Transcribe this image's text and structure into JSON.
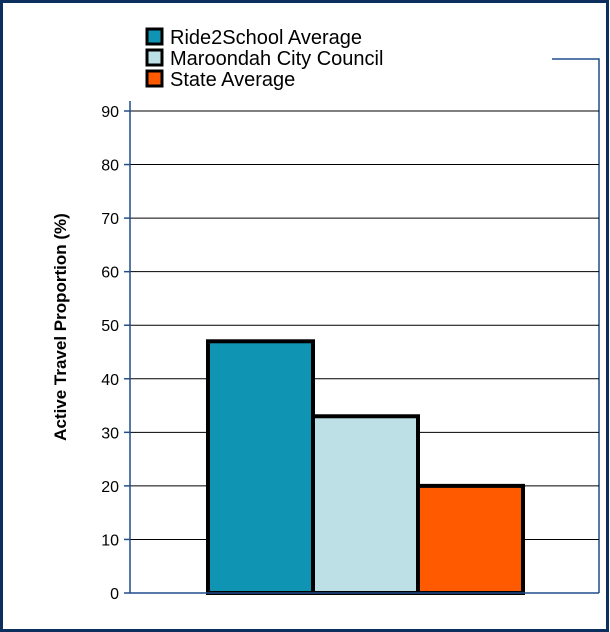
{
  "chart_data": {
    "type": "bar",
    "categories": [
      ""
    ],
    "series": [
      {
        "name": "Ride2School Average",
        "values": [
          47
        ],
        "color": "#0f94b4"
      },
      {
        "name": "Maroondah City Council",
        "values": [
          33
        ],
        "color": "#bde0e6"
      },
      {
        "name": "State Average",
        "values": [
          20
        ],
        "color": "#ff5a00"
      }
    ],
    "title": "",
    "xlabel": "",
    "ylabel": "Active Travel Proportion (%)",
    "ylim": [
      0,
      90
    ],
    "yticks": [
      "0",
      "10",
      "20",
      "30",
      "40",
      "50",
      "60",
      "70",
      "80",
      "90"
    ],
    "grid": true,
    "legend_position": "top-left"
  },
  "colors": {
    "frame": "#0d2f5e",
    "axis": "#1f4e8c",
    "bar_outline": "#000000"
  }
}
